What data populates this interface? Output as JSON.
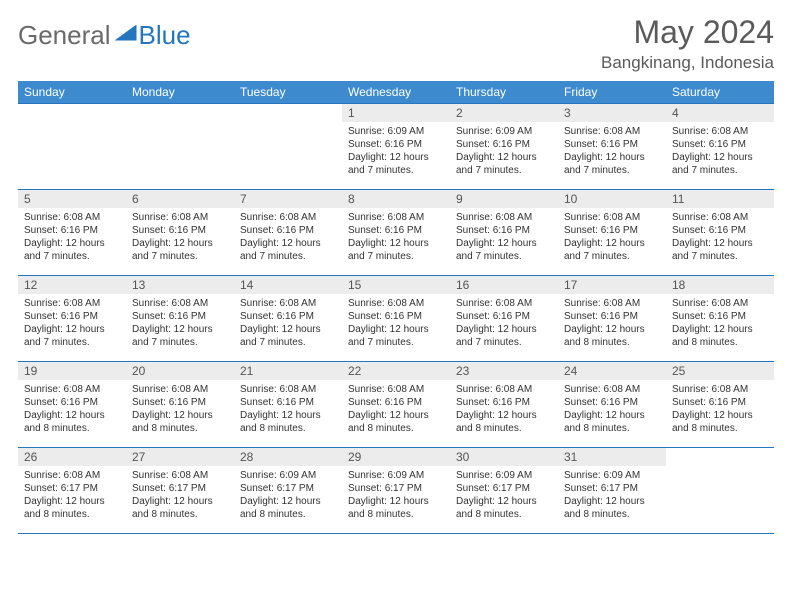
{
  "logo": {
    "part1": "General",
    "part2": "Blue"
  },
  "header": {
    "month_title": "May 2024",
    "location": "Bangkinang, Indonesia"
  },
  "colors": {
    "header_bg": "#3d8bce",
    "border": "#2676bf",
    "daynum_bg": "#ececec",
    "text_gray": "#5a5a5a",
    "logo_blue": "#2676bf"
  },
  "weekdays": [
    "Sunday",
    "Monday",
    "Tuesday",
    "Wednesday",
    "Thursday",
    "Friday",
    "Saturday"
  ],
  "weeks": [
    [
      {
        "n": "",
        "sr": "",
        "ss": "",
        "dl": ""
      },
      {
        "n": "",
        "sr": "",
        "ss": "",
        "dl": ""
      },
      {
        "n": "",
        "sr": "",
        "ss": "",
        "dl": ""
      },
      {
        "n": "1",
        "sr": "Sunrise: 6:09 AM",
        "ss": "Sunset: 6:16 PM",
        "dl": "Daylight: 12 hours and 7 minutes."
      },
      {
        "n": "2",
        "sr": "Sunrise: 6:09 AM",
        "ss": "Sunset: 6:16 PM",
        "dl": "Daylight: 12 hours and 7 minutes."
      },
      {
        "n": "3",
        "sr": "Sunrise: 6:08 AM",
        "ss": "Sunset: 6:16 PM",
        "dl": "Daylight: 12 hours and 7 minutes."
      },
      {
        "n": "4",
        "sr": "Sunrise: 6:08 AM",
        "ss": "Sunset: 6:16 PM",
        "dl": "Daylight: 12 hours and 7 minutes."
      }
    ],
    [
      {
        "n": "5",
        "sr": "Sunrise: 6:08 AM",
        "ss": "Sunset: 6:16 PM",
        "dl": "Daylight: 12 hours and 7 minutes."
      },
      {
        "n": "6",
        "sr": "Sunrise: 6:08 AM",
        "ss": "Sunset: 6:16 PM",
        "dl": "Daylight: 12 hours and 7 minutes."
      },
      {
        "n": "7",
        "sr": "Sunrise: 6:08 AM",
        "ss": "Sunset: 6:16 PM",
        "dl": "Daylight: 12 hours and 7 minutes."
      },
      {
        "n": "8",
        "sr": "Sunrise: 6:08 AM",
        "ss": "Sunset: 6:16 PM",
        "dl": "Daylight: 12 hours and 7 minutes."
      },
      {
        "n": "9",
        "sr": "Sunrise: 6:08 AM",
        "ss": "Sunset: 6:16 PM",
        "dl": "Daylight: 12 hours and 7 minutes."
      },
      {
        "n": "10",
        "sr": "Sunrise: 6:08 AM",
        "ss": "Sunset: 6:16 PM",
        "dl": "Daylight: 12 hours and 7 minutes."
      },
      {
        "n": "11",
        "sr": "Sunrise: 6:08 AM",
        "ss": "Sunset: 6:16 PM",
        "dl": "Daylight: 12 hours and 7 minutes."
      }
    ],
    [
      {
        "n": "12",
        "sr": "Sunrise: 6:08 AM",
        "ss": "Sunset: 6:16 PM",
        "dl": "Daylight: 12 hours and 7 minutes."
      },
      {
        "n": "13",
        "sr": "Sunrise: 6:08 AM",
        "ss": "Sunset: 6:16 PM",
        "dl": "Daylight: 12 hours and 7 minutes."
      },
      {
        "n": "14",
        "sr": "Sunrise: 6:08 AM",
        "ss": "Sunset: 6:16 PM",
        "dl": "Daylight: 12 hours and 7 minutes."
      },
      {
        "n": "15",
        "sr": "Sunrise: 6:08 AM",
        "ss": "Sunset: 6:16 PM",
        "dl": "Daylight: 12 hours and 7 minutes."
      },
      {
        "n": "16",
        "sr": "Sunrise: 6:08 AM",
        "ss": "Sunset: 6:16 PM",
        "dl": "Daylight: 12 hours and 7 minutes."
      },
      {
        "n": "17",
        "sr": "Sunrise: 6:08 AM",
        "ss": "Sunset: 6:16 PM",
        "dl": "Daylight: 12 hours and 8 minutes."
      },
      {
        "n": "18",
        "sr": "Sunrise: 6:08 AM",
        "ss": "Sunset: 6:16 PM",
        "dl": "Daylight: 12 hours and 8 minutes."
      }
    ],
    [
      {
        "n": "19",
        "sr": "Sunrise: 6:08 AM",
        "ss": "Sunset: 6:16 PM",
        "dl": "Daylight: 12 hours and 8 minutes."
      },
      {
        "n": "20",
        "sr": "Sunrise: 6:08 AM",
        "ss": "Sunset: 6:16 PM",
        "dl": "Daylight: 12 hours and 8 minutes."
      },
      {
        "n": "21",
        "sr": "Sunrise: 6:08 AM",
        "ss": "Sunset: 6:16 PM",
        "dl": "Daylight: 12 hours and 8 minutes."
      },
      {
        "n": "22",
        "sr": "Sunrise: 6:08 AM",
        "ss": "Sunset: 6:16 PM",
        "dl": "Daylight: 12 hours and 8 minutes."
      },
      {
        "n": "23",
        "sr": "Sunrise: 6:08 AM",
        "ss": "Sunset: 6:16 PM",
        "dl": "Daylight: 12 hours and 8 minutes."
      },
      {
        "n": "24",
        "sr": "Sunrise: 6:08 AM",
        "ss": "Sunset: 6:16 PM",
        "dl": "Daylight: 12 hours and 8 minutes."
      },
      {
        "n": "25",
        "sr": "Sunrise: 6:08 AM",
        "ss": "Sunset: 6:16 PM",
        "dl": "Daylight: 12 hours and 8 minutes."
      }
    ],
    [
      {
        "n": "26",
        "sr": "Sunrise: 6:08 AM",
        "ss": "Sunset: 6:17 PM",
        "dl": "Daylight: 12 hours and 8 minutes."
      },
      {
        "n": "27",
        "sr": "Sunrise: 6:08 AM",
        "ss": "Sunset: 6:17 PM",
        "dl": "Daylight: 12 hours and 8 minutes."
      },
      {
        "n": "28",
        "sr": "Sunrise: 6:09 AM",
        "ss": "Sunset: 6:17 PM",
        "dl": "Daylight: 12 hours and 8 minutes."
      },
      {
        "n": "29",
        "sr": "Sunrise: 6:09 AM",
        "ss": "Sunset: 6:17 PM",
        "dl": "Daylight: 12 hours and 8 minutes."
      },
      {
        "n": "30",
        "sr": "Sunrise: 6:09 AM",
        "ss": "Sunset: 6:17 PM",
        "dl": "Daylight: 12 hours and 8 minutes."
      },
      {
        "n": "31",
        "sr": "Sunrise: 6:09 AM",
        "ss": "Sunset: 6:17 PM",
        "dl": "Daylight: 12 hours and 8 minutes."
      },
      {
        "n": "",
        "sr": "",
        "ss": "",
        "dl": ""
      }
    ]
  ]
}
